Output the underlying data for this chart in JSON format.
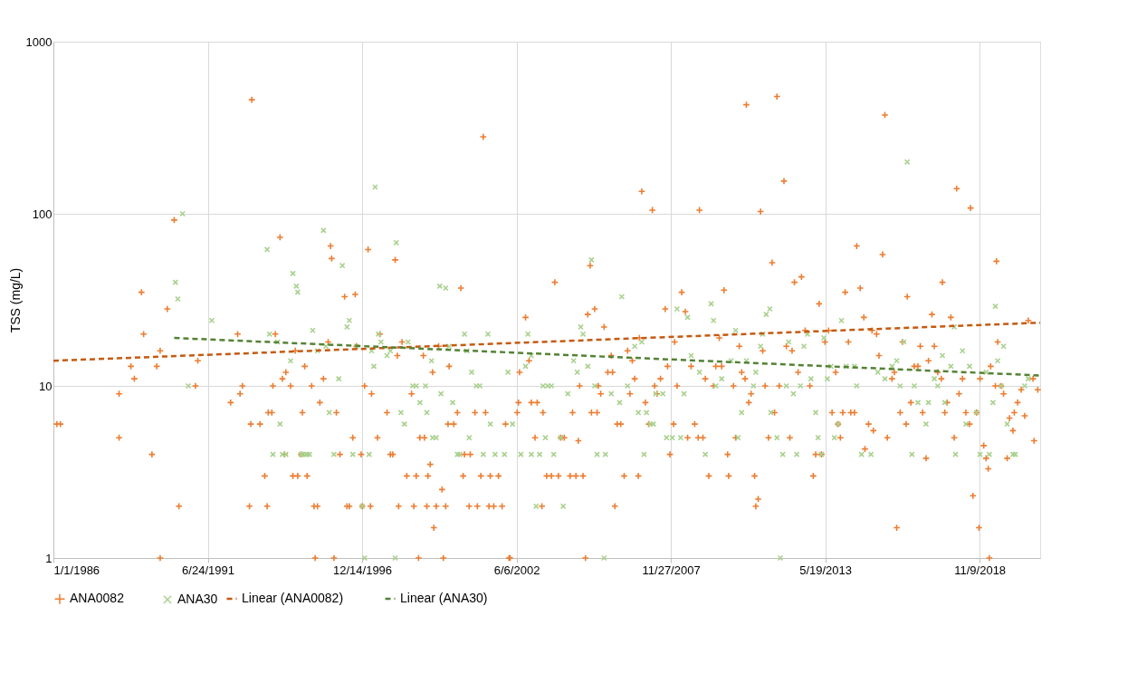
{
  "chart_data": {
    "type": "scatter",
    "ylabel": "TSS (mg/L)",
    "log": true,
    "grid": true,
    "legend": "bottom",
    "xlim": [
      "1986-01-01",
      "2021-01-01"
    ],
    "ylim": [
      1,
      1000
    ],
    "yticks": [
      1,
      10,
      100,
      1000
    ],
    "xticks": [
      {
        "value": "1986-01-01",
        "label": "1/1/1986"
      },
      {
        "value": "1991-06-24",
        "label": "6/24/1991"
      },
      {
        "value": "1996-12-14",
        "label": "12/14/1996"
      },
      {
        "value": "2002-06-06",
        "label": "6/6/2002"
      },
      {
        "value": "2007-11-27",
        "label": "11/27/2007"
      },
      {
        "value": "2013-05-19",
        "label": "5/19/2013"
      },
      {
        "value": "2018-11-09",
        "label": "11/9/2018"
      }
    ],
    "series": [
      {
        "name": "ANA0082",
        "marker": "cross",
        "color": "#ed7d31",
        "x": [
          "1986-02-15",
          "1986-04-01",
          "1988-05-01",
          "1988-05-01",
          "1988-10-01",
          "1988-11-15",
          "1989-02-15",
          "1989-03-15",
          "1989-07-01",
          "1989-09-01",
          "1989-10-15",
          "1989-10-15",
          "1990-01-15",
          "1990-04-15",
          "1990-06-15",
          "1991-01-15",
          "1991-02-15",
          "1992-04-15",
          "1992-07-15",
          "1992-08-15",
          "1992-09-15",
          "1992-12-15",
          "1993-01-01",
          "1993-01-15",
          "1993-05-01",
          "1993-07-01",
          "1993-08-01",
          "1993-08-15",
          "1993-10-01",
          "1993-10-15",
          "1993-11-15",
          "1994-01-15",
          "1994-02-15",
          "1994-03-15",
          "1994-04-01",
          "1994-06-01",
          "1994-07-01",
          "1994-08-01",
          "1994-09-01",
          "1994-10-15",
          "1994-11-01",
          "1994-12-01",
          "1995-01-01",
          "1995-03-01",
          "1995-04-01",
          "1995-04-15",
          "1995-05-15",
          "1995-06-15",
          "1995-08-01",
          "1995-10-01",
          "1995-11-01",
          "1995-11-15",
          "1995-12-15",
          "1996-01-15",
          "1996-03-01",
          "1996-05-01",
          "1996-06-01",
          "1996-07-01",
          "1996-08-15",
          "1996-09-15",
          "1996-10-01",
          "1996-12-01",
          "1996-12-15",
          "1997-01-15",
          "1997-03-01",
          "1997-04-01",
          "1997-04-15",
          "1997-07-01",
          "1997-08-01",
          "1997-11-01",
          "1997-12-15",
          "1998-01-15",
          "1998-02-15",
          "1998-03-15",
          "1998-04-01",
          "1998-05-15",
          "1998-07-15",
          "1998-09-15",
          "1998-10-15",
          "1998-11-15",
          "1998-12-15",
          "1999-01-01",
          "1999-02-15",
          "1999-03-01",
          "1999-04-01",
          "1999-04-15",
          "1999-05-15",
          "1999-06-15",
          "1999-07-01",
          "1999-08-01",
          "1999-09-01",
          "1999-10-15",
          "1999-11-01",
          "1999-12-01",
          "2000-01-01",
          "2000-01-15",
          "2000-03-15",
          "2000-05-01",
          "2000-06-15",
          "2000-07-15",
          "2000-08-01",
          "2000-10-01",
          "2000-10-15",
          "2000-12-15",
          "2001-01-15",
          "2001-03-01",
          "2001-04-01",
          "2001-05-01",
          "2001-06-15",
          "2001-07-01",
          "2001-08-15",
          "2001-10-15",
          "2001-12-01",
          "2002-01-15",
          "2002-03-01",
          "2002-03-15",
          "2002-06-15",
          "2002-07-01",
          "2002-07-15",
          "2002-10-01",
          "2002-11-15",
          "2002-12-15",
          "2003-02-01",
          "2003-03-01",
          "2003-05-01",
          "2003-05-15",
          "2003-07-01",
          "2003-09-01",
          "2003-10-15",
          "2003-12-01",
          "2004-01-01",
          "2004-02-15",
          "2004-05-01",
          "2004-06-01",
          "2004-07-15",
          "2004-08-15",
          "2004-09-01",
          "2004-10-15",
          "2004-11-15",
          "2004-12-15",
          "2005-01-15",
          "2005-02-01",
          "2005-03-15",
          "2005-04-15",
          "2005-05-01",
          "2005-06-01",
          "2005-07-15",
          "2005-09-01",
          "2005-10-15",
          "2005-11-01",
          "2005-12-01",
          "2006-01-01",
          "2006-02-15",
          "2006-04-01",
          "2006-05-15",
          "2006-06-15",
          "2006-07-15",
          "2006-08-15",
          "2006-10-01",
          "2006-10-15",
          "2006-11-15",
          "2007-01-01",
          "2007-02-15",
          "2007-04-01",
          "2007-05-01",
          "2007-06-01",
          "2007-07-15",
          "2007-09-15",
          "2007-10-15",
          "2007-11-15",
          "2008-01-01",
          "2008-01-15",
          "2008-02-15",
          "2008-04-15",
          "2008-06-01",
          "2008-07-01",
          "2008-08-15",
          "2008-10-01",
          "2008-11-15",
          "2008-12-01",
          "2009-01-15",
          "2009-02-15",
          "2009-04-01",
          "2009-06-01",
          "2009-07-01",
          "2009-08-15",
          "2009-09-15",
          "2009-10-15",
          "2009-12-01",
          "2009-12-15",
          "2010-02-15",
          "2010-03-15",
          "2010-05-01",
          "2010-06-01",
          "2010-07-15",
          "2010-08-01",
          "2010-09-01",
          "2010-10-01",
          "2010-11-15",
          "2010-12-01",
          "2011-01-01",
          "2011-02-01",
          "2011-03-01",
          "2011-04-01",
          "2011-05-15",
          "2011-07-01",
          "2011-08-01",
          "2011-09-01",
          "2011-10-01",
          "2011-12-01",
          "2012-01-01",
          "2012-02-15",
          "2012-03-15",
          "2012-04-15",
          "2012-06-01",
          "2012-07-15",
          "2012-09-01",
          "2012-11-01",
          "2012-12-15",
          "2013-01-15",
          "2013-03-01",
          "2013-04-01",
          "2013-05-15",
          "2013-07-01",
          "2013-08-15",
          "2013-10-01",
          "2013-11-01",
          "2013-12-01",
          "2014-01-01",
          "2014-02-01",
          "2014-03-15",
          "2014-04-15",
          "2014-06-01",
          "2014-07-01",
          "2014-08-15",
          "2014-10-01",
          "2014-10-15",
          "2014-12-01",
          "2015-01-15",
          "2015-02-01",
          "2015-03-15",
          "2015-04-15",
          "2015-06-01",
          "2015-07-01",
          "2015-08-01",
          "2015-10-01",
          "2015-11-01",
          "2015-12-01",
          "2016-01-15",
          "2016-02-15",
          "2016-04-01",
          "2016-04-15",
          "2016-06-01",
          "2016-07-15",
          "2016-09-01",
          "2016-10-01",
          "2016-11-01",
          "2016-12-15",
          "2017-01-15",
          "2017-03-01",
          "2017-04-01",
          "2017-05-15",
          "2017-07-01",
          "2017-07-15",
          "2017-08-15",
          "2017-09-15",
          "2017-11-01",
          "2017-12-15",
          "2018-01-15",
          "2018-02-15",
          "2018-04-01",
          "2018-05-15",
          "2018-07-01",
          "2018-07-15",
          "2018-08-15",
          "2018-10-01",
          "2018-11-01",
          "2018-11-15",
          "2019-01-01",
          "2019-02-01",
          "2019-03-01",
          "2019-03-15",
          "2019-04-01",
          "2019-06-01",
          "2019-06-15",
          "2019-07-01",
          "2019-08-15",
          "2019-09-15",
          "2019-11-01",
          "2019-12-01",
          "2020-01-15",
          "2020-02-01",
          "2020-03-15",
          "2020-05-01",
          "2020-06-15",
          "2020-08-01",
          "2020-10-01",
          "2020-10-15",
          "2020-12-01"
        ],
        "values": [
          6,
          6,
          9,
          5,
          13,
          11,
          35,
          20,
          4,
          13,
          16,
          1,
          28,
          92,
          2,
          10,
          14,
          8,
          20,
          9,
          10,
          2,
          6,
          460,
          6,
          3,
          2,
          7,
          7,
          10,
          20,
          73,
          11,
          4,
          12,
          10,
          3,
          16,
          3,
          4,
          7,
          13,
          3,
          10,
          2,
          1,
          2,
          8,
          11,
          18,
          65,
          55,
          1,
          7,
          4,
          33,
          2,
          2,
          5,
          34,
          17,
          4,
          2,
          10,
          62,
          2,
          9,
          5,
          20,
          7,
          4,
          4,
          54,
          15,
          2,
          18,
          3,
          9,
          2,
          3,
          1,
          5,
          15,
          5,
          2,
          3,
          3.5,
          12,
          1.5,
          2,
          17,
          2.5,
          1,
          2,
          6,
          13,
          6,
          7,
          37,
          3,
          4,
          2,
          4,
          7,
          2,
          3,
          280,
          7,
          2,
          3,
          2,
          3,
          2,
          6,
          1,
          1,
          7,
          8,
          12,
          25,
          14,
          8,
          5,
          8,
          2,
          7,
          3,
          3,
          40,
          3,
          5,
          5,
          3,
          7,
          3,
          4.8,
          10,
          3,
          1,
          26,
          50,
          7,
          28,
          7,
          10,
          9,
          22,
          12,
          15,
          12,
          2,
          6,
          6,
          3,
          16,
          9,
          14,
          11,
          3,
          19,
          135,
          8,
          6,
          105,
          10,
          9,
          11,
          28,
          13,
          4,
          6,
          18,
          10,
          35,
          27,
          5,
          13,
          6,
          5,
          105,
          5,
          11,
          3,
          10,
          13,
          19,
          13,
          36,
          4,
          3,
          10,
          5,
          17,
          12,
          11,
          430,
          8,
          9,
          3,
          2,
          2.2,
          103,
          16,
          10,
          5,
          52,
          7,
          480,
          10,
          155,
          17,
          5,
          16,
          40,
          12,
          43,
          21,
          10,
          3,
          4,
          30,
          4,
          18,
          21,
          7,
          12,
          6,
          5,
          7,
          35,
          18,
          7,
          7,
          65,
          37,
          25,
          4.3,
          6,
          21,
          5.5,
          20,
          15,
          58,
          375,
          5,
          11,
          12,
          1.5,
          7,
          18,
          6,
          33,
          8,
          13,
          13,
          17,
          7,
          3.8,
          14,
          26,
          17,
          12,
          11,
          40,
          7,
          8,
          25,
          5,
          140,
          9,
          11,
          7,
          6,
          108,
          2.3,
          7,
          1.5,
          11,
          4.5,
          3.8,
          3.3,
          1,
          13,
          10,
          53,
          18,
          10,
          9,
          3.8,
          6.5,
          5.5,
          7,
          8,
          9.5,
          6.7,
          24,
          11,
          4.8,
          9.5
        ]
      },
      {
        "name": "ANA30",
        "marker": "x",
        "color": "#a9d18e",
        "x": [
          "1990-05-01",
          "1990-06-01",
          "1990-08-01",
          "1990-10-15",
          "1991-08-15",
          "1993-08-01",
          "1993-09-01",
          "1993-10-15",
          "1993-12-15",
          "1994-01-15",
          "1994-02-15",
          "1994-04-01",
          "1994-06-01",
          "1994-07-01",
          "1994-08-15",
          "1994-09-01",
          "1994-10-15",
          "1994-11-01",
          "1994-12-15",
          "1995-01-01",
          "1995-02-01",
          "1995-03-15",
          "1995-05-15",
          "1995-08-01",
          "1995-09-01",
          "1995-10-15",
          "1995-12-15",
          "1996-02-15",
          "1996-04-01",
          "1996-06-01",
          "1996-07-01",
          "1996-08-15",
          "1996-10-01",
          "1996-12-15",
          "1997-01-15",
          "1997-03-15",
          "1997-04-15",
          "1997-05-15",
          "1997-06-01",
          "1997-07-15",
          "1997-08-15",
          "1997-11-01",
          "1997-12-15",
          "1998-02-15",
          "1998-03-01",
          "1998-05-01",
          "1998-06-15",
          "1998-08-01",
          "1998-10-01",
          "1998-11-15",
          "1999-01-01",
          "1999-03-15",
          "1999-04-01",
          "1999-06-01",
          "1999-06-15",
          "1999-08-01",
          "1999-09-15",
          "1999-10-01",
          "1999-12-01",
          "2000-01-15",
          "2000-03-01",
          "2000-05-01",
          "2000-06-01",
          "2000-08-01",
          "2000-09-01",
          "2000-10-01",
          "2000-11-01",
          "2001-01-01",
          "2001-02-15",
          "2001-04-01",
          "2001-06-01",
          "2001-07-01",
          "2001-09-01",
          "2002-01-01",
          "2002-02-15",
          "2002-04-15",
          "2002-08-01",
          "2002-10-01",
          "2002-11-01",
          "2002-12-15",
          "2002-12-15",
          "2003-02-15",
          "2003-04-01",
          "2003-05-15",
          "2003-06-15",
          "2003-07-15",
          "2003-09-01",
          "2003-10-01",
          "2004-01-01",
          "2004-02-01",
          "2004-04-01",
          "2004-06-15",
          "2004-08-01",
          "2004-09-15",
          "2004-10-15",
          "2004-12-15",
          "2005-02-01",
          "2005-03-15",
          "2005-04-15",
          "2005-07-15",
          "2005-08-01",
          "2005-10-15",
          "2006-02-01",
          "2006-03-01",
          "2006-05-15",
          "2006-08-15",
          "2006-10-01",
          "2006-11-15",
          "2006-12-15",
          "2007-01-15",
          "2007-03-01",
          "2007-04-15",
          "2007-05-15",
          "2007-08-15",
          "2007-10-01",
          "2007-12-15",
          "2008-02-15",
          "2008-04-01",
          "2008-05-15",
          "2008-07-01",
          "2008-08-15",
          "2008-12-01",
          "2009-02-15",
          "2009-05-01",
          "2009-06-01",
          "2009-07-01",
          "2009-09-15",
          "2010-01-15",
          "2010-03-15",
          "2010-04-15",
          "2010-06-01",
          "2010-08-01",
          "2010-11-01",
          "2010-12-01",
          "2011-02-01",
          "2011-03-01",
          "2011-04-15",
          "2011-06-01",
          "2011-06-15",
          "2011-09-01",
          "2011-10-15",
          "2011-11-15",
          "2012-01-01",
          "2012-02-01",
          "2012-04-01",
          "2012-05-15",
          "2012-07-01",
          "2012-08-15",
          "2012-10-01",
          "2012-11-15",
          "2013-01-15",
          "2013-02-15",
          "2013-04-01",
          "2013-05-01",
          "2013-06-15",
          "2013-08-01",
          "2013-09-15",
          "2013-11-01",
          "2013-12-15",
          "2014-02-15",
          "2014-06-01",
          "2014-07-01",
          "2014-09-01",
          "2015-01-01",
          "2015-04-01",
          "2015-07-01",
          "2015-10-01",
          "2015-12-01",
          "2016-01-15",
          "2016-03-01",
          "2016-04-15",
          "2016-06-15",
          "2016-07-15",
          "2016-09-01",
          "2016-12-15",
          "2017-01-15",
          "2017-04-01",
          "2017-05-15",
          "2017-07-15",
          "2017-08-15",
          "2017-11-01",
          "2017-12-15",
          "2018-01-01",
          "2018-04-01",
          "2018-05-15",
          "2018-07-01",
          "2018-10-01",
          "2018-11-15",
          "2019-02-01",
          "2019-03-15",
          "2019-05-01",
          "2019-06-01",
          "2019-07-01",
          "2019-08-15",
          "2019-09-15",
          "2019-11-01",
          "2020-01-15",
          "2020-02-15",
          "2020-06-15",
          "2020-08-01"
        ],
        "values": [
          40,
          32,
          100,
          10,
          24,
          62,
          20,
          4,
          18,
          6,
          4,
          4,
          14,
          45,
          38,
          35,
          4,
          4,
          4,
          4,
          4,
          21,
          16,
          80,
          17,
          7,
          4,
          11,
          50,
          22,
          24,
          4,
          17,
          2,
          1,
          4,
          16,
          13,
          143,
          20,
          18,
          15,
          16,
          1,
          68,
          7,
          6,
          18,
          10,
          10,
          8,
          10,
          7,
          14,
          5,
          5,
          38,
          9,
          37,
          17,
          8,
          4,
          4,
          20,
          16,
          5,
          12,
          10,
          10,
          4,
          20,
          6,
          4,
          4,
          12,
          6,
          4,
          13,
          20,
          15,
          4,
          2,
          4,
          10,
          5,
          10,
          10,
          4,
          5,
          2,
          9,
          14,
          12,
          22,
          20,
          13,
          54,
          10,
          4,
          1,
          4,
          9,
          8,
          33,
          10,
          17,
          7,
          18,
          4,
          7,
          6,
          6,
          9,
          9,
          5,
          5,
          28,
          5,
          9,
          25,
          15,
          12,
          4,
          30,
          24,
          10,
          11,
          14,
          21,
          5,
          7,
          14,
          10,
          12,
          17,
          20,
          26,
          28,
          7,
          5,
          1,
          4,
          10,
          18,
          9,
          4,
          10,
          17,
          20,
          11,
          7,
          5,
          4,
          19,
          11,
          13,
          5,
          6,
          24,
          13,
          13,
          10,
          4,
          4,
          12,
          11,
          13,
          14,
          10,
          18,
          200,
          4,
          10,
          8,
          6,
          8,
          11,
          10,
          15,
          8,
          13,
          22,
          4,
          16,
          6,
          13,
          7,
          4,
          12,
          4,
          8,
          29,
          14,
          10,
          17,
          6,
          4,
          4,
          10,
          11
        ]
      },
      {
        "name": "Linear (ANA0082)",
        "type": "line",
        "line_style": "dashed",
        "color": "#c55a11",
        "x": [
          "1986-01-01",
          "2021-01-01"
        ],
        "values": [
          14,
          23.3
        ]
      },
      {
        "name": "Linear (ANA30)",
        "type": "line",
        "line_style": "dashed",
        "color": "#548235",
        "x": [
          "1990-04-15",
          "2021-01-01"
        ],
        "values": [
          19,
          11.5
        ]
      }
    ]
  }
}
